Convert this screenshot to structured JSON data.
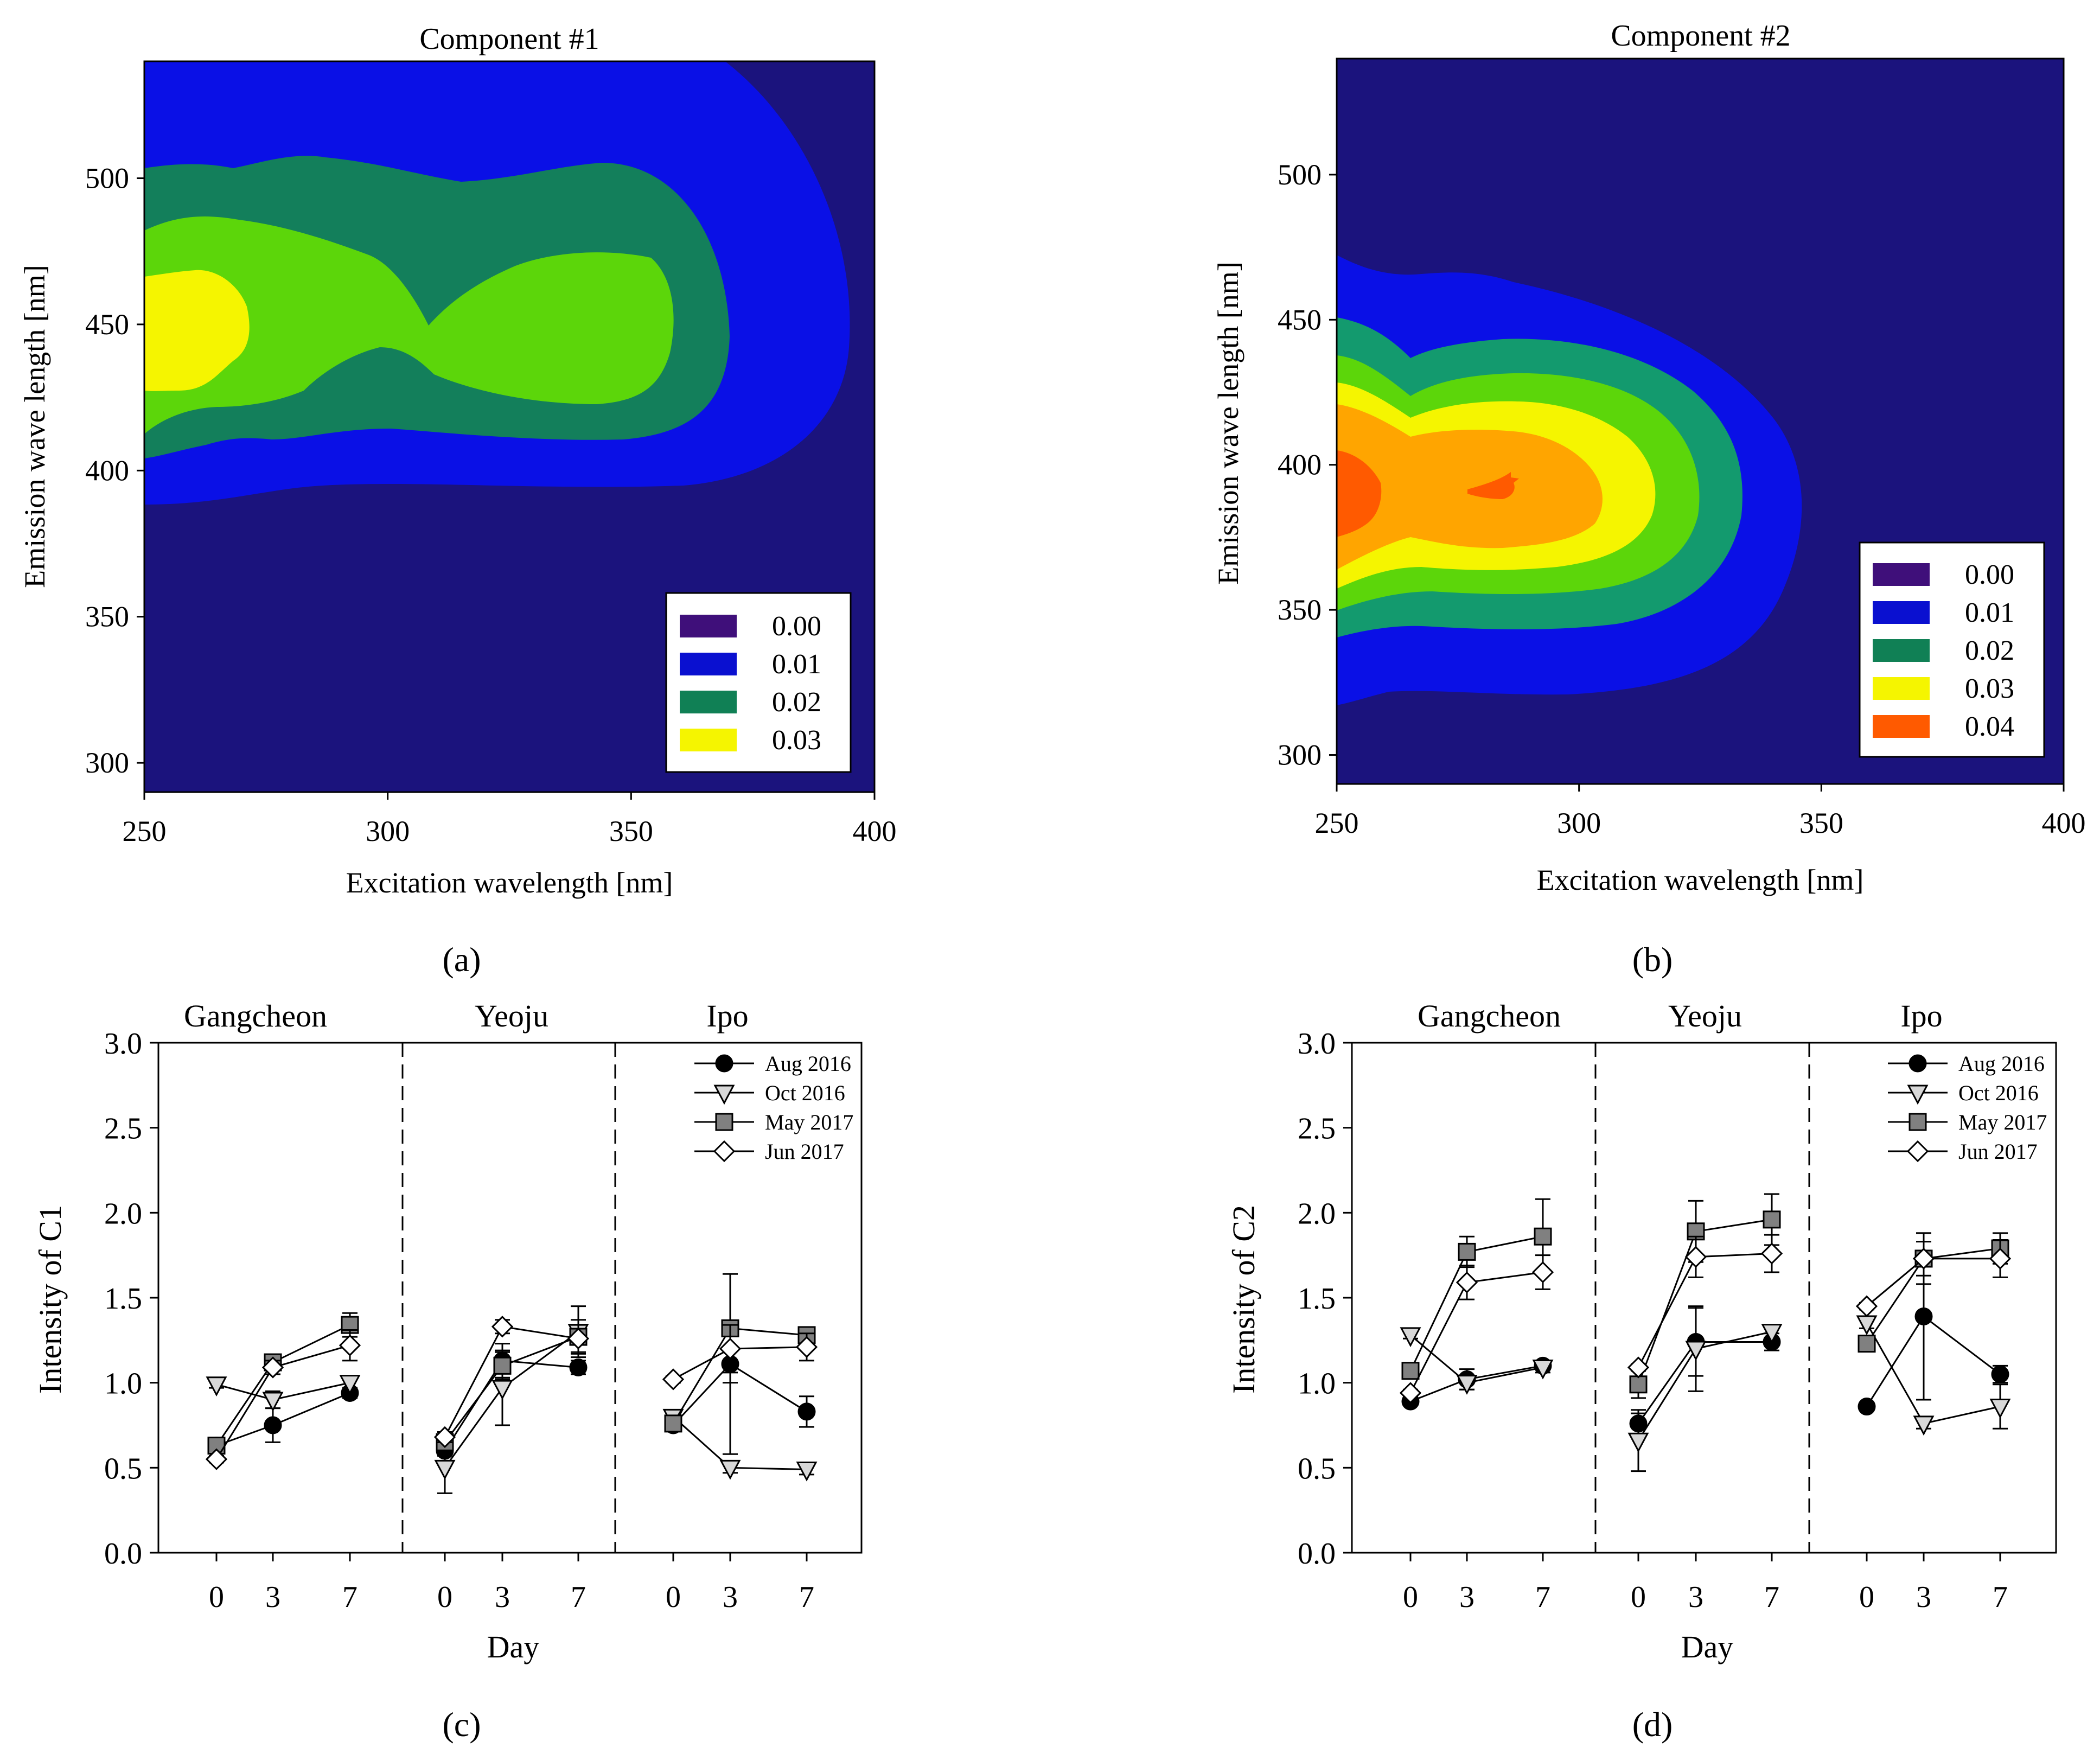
{
  "figure": {
    "panel_labels": [
      "(a)",
      "(b)",
      "(c)",
      "(d)"
    ]
  },
  "chart_data": [
    {
      "type": "heatmap",
      "panel": "a",
      "title": "Component #1",
      "xlabel": "Excitation wavelength [nm]",
      "ylabel": "Emission wave length [nm]",
      "xlim": [
        250,
        400
      ],
      "ylim": [
        290,
        540
      ],
      "x_ticks": [
        250,
        300,
        350,
        400
      ],
      "y_ticks": [
        300,
        350,
        400,
        450,
        500
      ],
      "colors": {
        "bg": "#1b137d",
        "l1": "#0a10e6",
        "l2": "#137f5b",
        "l2b": "#5cd60a",
        "l3": "#f5f500"
      },
      "legend": [
        {
          "label": "0.00",
          "color": "#3f0f7a"
        },
        {
          "label": "0.01",
          "color": "#0a10d0"
        },
        {
          "label": "0.02",
          "color": "#108055"
        },
        {
          "label": "0.03",
          "color": "#f5f500"
        }
      ],
      "peaks": [
        {
          "ex": 258,
          "em": 450,
          "value": 0.03
        },
        {
          "ex": 335,
          "em": 445,
          "value": 0.025
        }
      ]
    },
    {
      "type": "heatmap",
      "panel": "b",
      "title": "Component #2",
      "xlabel": "Excitation wavelength [nm]",
      "ylabel": "Emission wave length [nm]",
      "xlim": [
        250,
        400
      ],
      "ylim": [
        290,
        540
      ],
      "x_ticks": [
        250,
        300,
        350,
        400
      ],
      "y_ticks": [
        300,
        350,
        400,
        450,
        500
      ],
      "colors": {
        "bg": "#1b137d",
        "l0b": "#0a10e6",
        "l1": "#139a6e",
        "l1b": "#5cd60a",
        "l2": "#f5f500",
        "l3": "#ffa500",
        "l4": "#ff5a00"
      },
      "legend": [
        {
          "label": "0.00",
          "color": "#3f0f7a"
        },
        {
          "label": "0.01",
          "color": "#0a10d0"
        },
        {
          "label": "0.02",
          "color": "#108055"
        },
        {
          "label": "0.03",
          "color": "#f5f500"
        },
        {
          "label": "0.04",
          "color": "#ff5a00"
        }
      ],
      "peaks": [
        {
          "ex": 250,
          "em": 393,
          "value": 0.045
        },
        {
          "ex": 282,
          "em": 393,
          "value": 0.045
        }
      ]
    },
    {
      "type": "line",
      "panel": "c",
      "ylabel": "Intensity of C1",
      "xlabel": "Day",
      "ylim": [
        0,
        3.0
      ],
      "y_ticks": [
        "0.0",
        "0.5",
        "1.0",
        "1.5",
        "2.0",
        "2.5",
        "3.0"
      ],
      "x_ticks": [
        "0",
        "3",
        "7"
      ],
      "groups": [
        "Gangcheon",
        "Yeoju",
        "Ipo"
      ],
      "days": [
        0,
        3,
        7
      ],
      "series": [
        {
          "name": "Aug 2016",
          "marker": "circle",
          "values": [
            [
              0.63,
              0.75,
              0.94
            ],
            [
              0.6,
              1.13,
              1.09
            ],
            [
              0.75,
              1.11,
              0.83
            ]
          ],
          "errors": [
            [
              0.02,
              0.1,
              0.03
            ],
            [
              0.03,
              0.1,
              0.04
            ],
            [
              0.03,
              0.53,
              0.09
            ]
          ]
        },
        {
          "name": "Oct 2016",
          "marker": "triangle-down",
          "values": [
            [
              0.99,
              0.9,
              1.0
            ],
            [
              0.5,
              0.97,
              1.3
            ],
            [
              0.8,
              0.5,
              0.49
            ]
          ],
          "errors": [
            [
              0.02,
              0.05,
              0.03
            ],
            [
              0.15,
              0.22,
              0.15
            ],
            [
              0.03,
              0.03,
              0.03
            ]
          ]
        },
        {
          "name": "May 2017",
          "marker": "square",
          "values": [
            [
              0.63,
              1.12,
              1.34
            ],
            [
              0.65,
              1.1,
              1.27
            ],
            [
              0.76,
              1.32,
              1.28
            ]
          ],
          "errors": [
            [
              0.02,
              0.04,
              0.07
            ],
            [
              0.04,
              0.08,
              0.1
            ],
            [
              0.03,
              0.32,
              0.03
            ]
          ]
        },
        {
          "name": "Jun 2017",
          "marker": "diamond",
          "values": [
            [
              0.55,
              1.09,
              1.22
            ],
            [
              0.68,
              1.33,
              1.26
            ],
            [
              1.02,
              1.2,
              1.21
            ]
          ],
          "errors": [
            [
              0.02,
              0.04,
              0.09
            ],
            [
              0.03,
              0.04,
              0.08
            ],
            [
              0.02,
              0.14,
              0.08
            ]
          ]
        }
      ]
    },
    {
      "type": "line",
      "panel": "d",
      "ylabel": "Intensity of C2",
      "xlabel": "Day",
      "ylim": [
        0,
        3.0
      ],
      "y_ticks": [
        "0.0",
        "0.5",
        "1.0",
        "1.5",
        "2.0",
        "2.5",
        "3.0"
      ],
      "x_ticks": [
        "0",
        "3",
        "7"
      ],
      "groups": [
        "Gangcheon",
        "Yeoju",
        "Ipo"
      ],
      "days": [
        0,
        3,
        7
      ],
      "series": [
        {
          "name": "Aug 2016",
          "marker": "circle",
          "values": [
            [
              0.89,
              1.02,
              1.1
            ],
            [
              0.76,
              1.24,
              1.24
            ],
            [
              0.86,
              1.39,
              1.05
            ]
          ],
          "errors": [
            [
              0.02,
              0.06,
              0.02
            ],
            [
              0.06,
              0.2,
              0.05
            ],
            [
              0.02,
              0.49,
              0.05
            ]
          ]
        },
        {
          "name": "Oct 2016",
          "marker": "triangle-down",
          "values": [
            [
              1.28,
              1.0,
              1.09
            ],
            [
              0.66,
              1.2,
              1.3
            ],
            [
              1.35,
              0.76,
              0.86
            ]
          ],
          "errors": [
            [
              0.02,
              0.04,
              0.03
            ],
            [
              0.18,
              0.25,
              0.04
            ],
            [
              0.03,
              0.03,
              0.13
            ]
          ]
        },
        {
          "name": "May 2017",
          "marker": "square",
          "values": [
            [
              1.07,
              1.77,
              1.86
            ],
            [
              0.99,
              1.89,
              1.96
            ],
            [
              1.23,
              1.73,
              1.79
            ]
          ],
          "errors": [
            [
              0.03,
              0.09,
              0.22
            ],
            [
              0.08,
              0.18,
              0.15
            ],
            [
              0.04,
              0.15,
              0.09
            ]
          ]
        },
        {
          "name": "Jun 2017",
          "marker": "diamond",
          "values": [
            [
              0.94,
              1.59,
              1.65
            ],
            [
              1.09,
              1.74,
              1.76
            ],
            [
              1.45,
              1.73,
              1.73
            ]
          ],
          "errors": [
            [
              0.02,
              0.1,
              0.1
            ],
            [
              0.02,
              0.12,
              0.11
            ],
            [
              0.02,
              0.1,
              0.11
            ]
          ]
        }
      ]
    }
  ]
}
